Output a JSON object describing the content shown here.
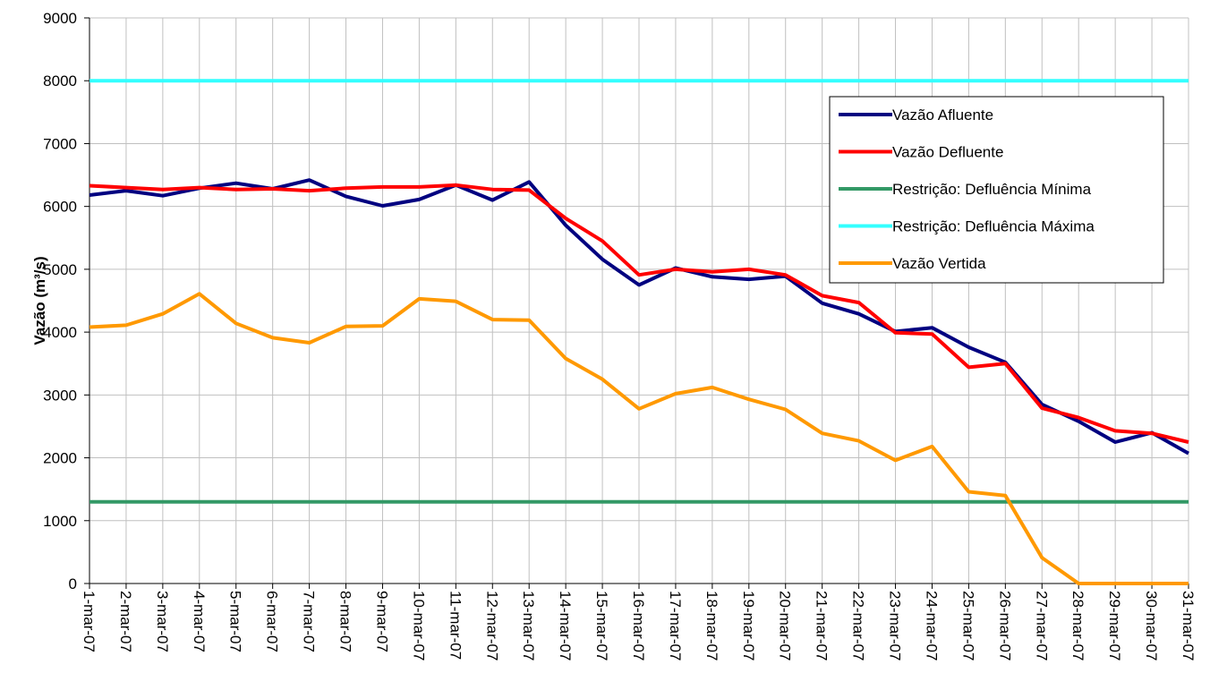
{
  "chart_data": {
    "type": "line",
    "y_label": "Vazão (m³/s)",
    "categories": [
      "1-mar-07",
      "2-mar-07",
      "3-mar-07",
      "4-mar-07",
      "5-mar-07",
      "6-mar-07",
      "7-mar-07",
      "8-mar-07",
      "9-mar-07",
      "10-mar-07",
      "11-mar-07",
      "12-mar-07",
      "13-mar-07",
      "14-mar-07",
      "15-mar-07",
      "16-mar-07",
      "17-mar-07",
      "18-mar-07",
      "19-mar-07",
      "20-mar-07",
      "21-mar-07",
      "22-mar-07",
      "23-mar-07",
      "24-mar-07",
      "25-mar-07",
      "26-mar-07",
      "27-mar-07",
      "28-mar-07",
      "29-mar-07",
      "30-mar-07",
      "31-mar-07"
    ],
    "series": [
      {
        "name": "Vazão Afluente",
        "color": "#000080",
        "values": [
          6180,
          6250,
          6170,
          6290,
          6370,
          6280,
          6420,
          6160,
          6010,
          6110,
          6340,
          6100,
          6390,
          5700,
          5160,
          4750,
          5020,
          4880,
          4840,
          4890,
          4460,
          4290,
          4010,
          4070,
          3760,
          3520,
          2850,
          2580,
          2250,
          2400,
          2070
        ]
      },
      {
        "name": "Vazão Defluente",
        "color": "#ff0000",
        "values": [
          6330,
          6300,
          6270,
          6300,
          6270,
          6280,
          6250,
          6290,
          6310,
          6310,
          6340,
          6270,
          6260,
          5810,
          5450,
          4910,
          5000,
          4960,
          5000,
          4910,
          4580,
          4470,
          3990,
          3970,
          3440,
          3500,
          2790,
          2640,
          2430,
          2390,
          2250
        ]
      },
      {
        "name": "Restrição: Defluência Mínima",
        "color": "#339966",
        "values": [
          1300,
          1300,
          1300,
          1300,
          1300,
          1300,
          1300,
          1300,
          1300,
          1300,
          1300,
          1300,
          1300,
          1300,
          1300,
          1300,
          1300,
          1300,
          1300,
          1300,
          1300,
          1300,
          1300,
          1300,
          1300,
          1300,
          1300,
          1300,
          1300,
          1300,
          1300
        ]
      },
      {
        "name": "Restrição: Defluência Máxima",
        "color": "#33ffff",
        "values": [
          8000,
          8000,
          8000,
          8000,
          8000,
          8000,
          8000,
          8000,
          8000,
          8000,
          8000,
          8000,
          8000,
          8000,
          8000,
          8000,
          8000,
          8000,
          8000,
          8000,
          8000,
          8000,
          8000,
          8000,
          8000,
          8000,
          8000,
          8000,
          8000,
          8000,
          8000
        ]
      },
      {
        "name": "Vazão Vertida",
        "color": "#ff9900",
        "values": [
          4080,
          4110,
          4290,
          4610,
          4140,
          3910,
          3830,
          4090,
          4100,
          4530,
          4490,
          4200,
          4190,
          3580,
          3250,
          2780,
          3020,
          3120,
          2930,
          2770,
          2390,
          2270,
          1960,
          2180,
          1460,
          1400,
          410,
          0,
          0,
          0,
          0
        ]
      }
    ],
    "ylim": [
      0,
      9000
    ],
    "yticks": [
      0,
      1000,
      2000,
      3000,
      4000,
      5000,
      6000,
      7000,
      8000,
      9000
    ],
    "grid": true
  }
}
